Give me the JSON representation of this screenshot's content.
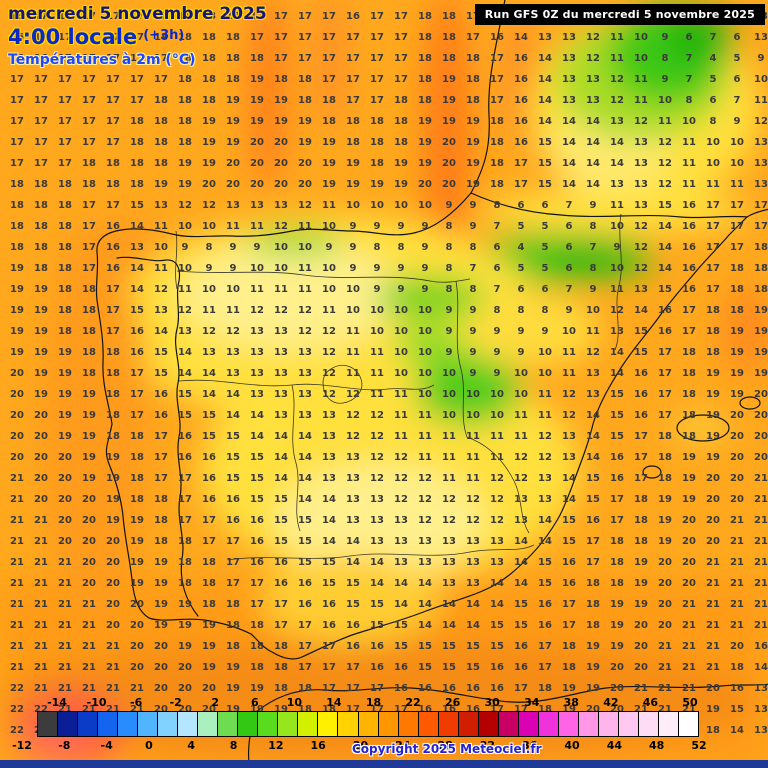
{
  "header": {
    "date_line": "mercredi 5 novembre 2025",
    "time_line": "4:00 locale",
    "time_offset": "(+3h)",
    "param_line": "Températures à 2m (°C)"
  },
  "run_box": {
    "label": "Run GFS 0Z du mercredi 5 novembre 2025"
  },
  "copyright": "Copyright 2025 Meteociel.fr",
  "colors": {
    "base_map": "#ffa81e",
    "warm_orange": "#ff9600",
    "yellow_zone": "#ffe03c",
    "green_zone": "#46c814",
    "header_blue": "#0a28c8",
    "bottom_strip": "#1e3a96"
  },
  "legend": {
    "top_labels": [
      "-14",
      "-10",
      "-6",
      "-2",
      "2",
      "6",
      "10",
      "14",
      "18",
      "22",
      "26",
      "30",
      "34",
      "38",
      "42",
      "46",
      "50"
    ],
    "bottom_labels": [
      "-12",
      "-8",
      "-4",
      "0",
      "4",
      "8",
      "12",
      "16",
      "20",
      "24",
      "28",
      "32",
      "36",
      "40",
      "44",
      "48",
      "52"
    ],
    "palette": [
      "#3c3c3c",
      "#0a1e96",
      "#0a3cc8",
      "#1464f0",
      "#288cff",
      "#50b4ff",
      "#82d2ff",
      "#b4e6ff",
      "#aaf0be",
      "#6edc50",
      "#32c814",
      "#5adc1e",
      "#96e61e",
      "#d2f000",
      "#fff000",
      "#ffd200",
      "#ffb400",
      "#ff9600",
      "#ff7800",
      "#ff5a00",
      "#f03c00",
      "#d21e00",
      "#b40000",
      "#c80064",
      "#dc00b4",
      "#f032dc",
      "#ff64e6",
      "#ff96e6",
      "#ffb4ec",
      "#ffc8f0",
      "#ffdcf5",
      "#ffeefa",
      "#ffffff"
    ]
  },
  "grid": {
    "rows": [
      "18 17 17 17 17 17 18 18 18 18 17 17 17 17 16 17 17 18 18 17 16 14 13 13 12 11 10 9 7 6 7 13",
      "16 17 17 17 17 17 18 18 18 18 17 17 17 17 17 17 17 18 18 17 16 14 13 13 12 11 10 9 6 7 6 13",
      "16 16 17 17 17 17 17 18 18 18 18 17 17 17 17 17 17 18 18 18 17 16 14 13 12 11 10 8 7 4 5 9",
      "17 17 17 17 17 17 17 18 18 18 19 18 18 17 17 17 17 18 19 18 17 16 14 13 13 12 11 9 7 5 6 10",
      "17 17 17 17 17 17 18 18 18 19 19 19 18 18 17 17 18 18 19 18 17 16 14 13 13 12 11 10 8 6 7 11",
      "17 17 17 17 17 18 18 18 19 19 19 19 19 18 18 18 18 19 19 19 18 16 14 14 14 13 12 11 10 8 9 12",
      "17 17 17 17 17 18 18 18 19 19 20 20 19 19 18 18 18 19 20 19 18 16 15 14 14 14 13 12 11 10 10 13",
      "17 17 17 18 18 18 18 19 19 20 20 20 20 19 19 18 19 19 20 19 18 17 15 14 14 14 13 12 11 10 10 13",
      "18 18 18 18 18 18 19 19 20 20 20 20 20 19 19 19 19 20 20 19 18 17 15 14 14 13 13 12 11 11 11 13",
      "18 18 18 17 17 15 13 12 12 13 13 13 12 11 10 10 10 10 9 9 8 6 6 7 9 11 13 15 16 17 17 17",
      "18 18 18 17 16 14 11 10 10 11 11 12 11 10 9 9 9 9 8 9 7 5 5 6 8 10 12 14 16 17 17 17",
      "18 18 18 17 16 13 10 9 8 9 9 10 10 9 9 8 8 9 8 8 6 4 5 6 7 9 12 14 16 17 17 18",
      "19 18 18 17 16 14 11 10 9 9 10 10 11 10 9 9 9 9 8 7 6 5 5 6 8 10 12 14 16 17 18 18",
      "19 19 18 18 17 14 12 11 10 10 11 11 11 10 10 9 9 9 8 8 7 6 6 7 9 11 13 15 16 17 18 18",
      "19 19 18 18 17 15 13 12 11 11 12 12 12 11 10 10 10 10 9 9 8 8 8 9 10 12 14 16 17 18 18 19",
      "19 19 18 18 17 16 14 13 12 12 13 13 12 12 11 10 10 10 9 9 9 9 9 10 11 13 15 16 17 18 19 19",
      "19 19 19 18 18 16 15 14 13 13 13 13 13 12 11 11 10 10 9 9 9 9 10 11 12 14 15 17 18 18 19 19",
      "20 19 19 18 18 17 15 14 14 13 13 13 13 12 11 11 10 10 10 9 9 10 10 11 13 14 16 17 18 19 19 19",
      "20 19 19 19 18 17 16 15 14 14 13 13 13 12 12 11 11 10 10 10 10 10 11 12 13 15 16 17 18 19 19 20",
      "20 20 19 19 18 17 16 15 15 14 14 13 13 13 12 12 11 11 10 10 10 11 11 12 14 15 16 17 18 19 20 20",
      "20 20 19 19 18 18 17 16 15 15 14 14 14 13 12 12 11 11 11 11 11 11 12 13 14 15 17 18 18 19 20 20",
      "20 20 20 19 19 18 17 16 16 15 15 14 14 13 13 12 12 11 11 11 11 12 12 13 14 16 17 18 19 19 20 20",
      "21 20 20 19 19 18 17 17 16 15 15 14 14 13 13 12 12 12 11 11 12 12 13 14 15 16 17 18 19 20 20 21",
      "21 20 20 20 19 18 18 17 16 16 15 15 14 14 13 13 12 12 12 12 12 13 13 14 15 17 18 19 19 20 20 21",
      "21 21 20 20 19 19 18 17 17 16 16 15 15 14 13 13 13 12 12 12 12 13 14 15 16 17 18 19 20 20 21 21",
      "21 21 20 20 20 19 18 18 17 17 16 15 15 14 14 13 13 13 13 13 13 14 14 15 17 18 18 19 20 20 21 21",
      "21 21 21 20 20 19 19 18 18 17 16 16 15 15 14 14 13 13 13 13 13 14 15 16 17 18 19 20 20 21 21 21",
      "21 21 21 20 20 19 19 18 18 17 17 16 16 15 15 14 14 14 13 13 14 14 15 16 18 18 19 20 20 21 21 21",
      "21 21 21 21 20 20 19 19 18 18 17 17 16 16 15 15 14 14 14 14 14 15 16 17 18 19 19 20 21 21 21 21",
      "21 21 21 21 20 20 19 19 19 18 18 17 17 16 16 15 15 14 14 14 15 15 16 17 18 19 20 20 21 21 21 21",
      "21 21 21 21 21 20 20 19 19 18 18 18 17 17 16 16 15 15 15 15 15 16 17 18 19 19 20 21 21 21 20 16",
      "21 21 21 21 21 20 20 20 19 19 18 18 17 17 17 16 16 15 15 15 16 16 17 18 19 20 20 21 21 21 18 14",
      "22 21 21 21 21 21 20 20 20 19 19 18 18 17 17 17 16 16 16 16 16 17 18 19 19 20 21 21 21 20 16 13",
      "22 22 21 21 21 21 20 20 20 19 19 19 18 18 17 17 17 16 16 16 17 17 18 19 20 20 21 21 21 19 15 13",
      "22 22 22 21 21 21 21 20 20 20 19 19 18 18 18 17 17 17 17 17 17 18 18 19 20 21 21 21 20 18 14 13"
    ]
  }
}
